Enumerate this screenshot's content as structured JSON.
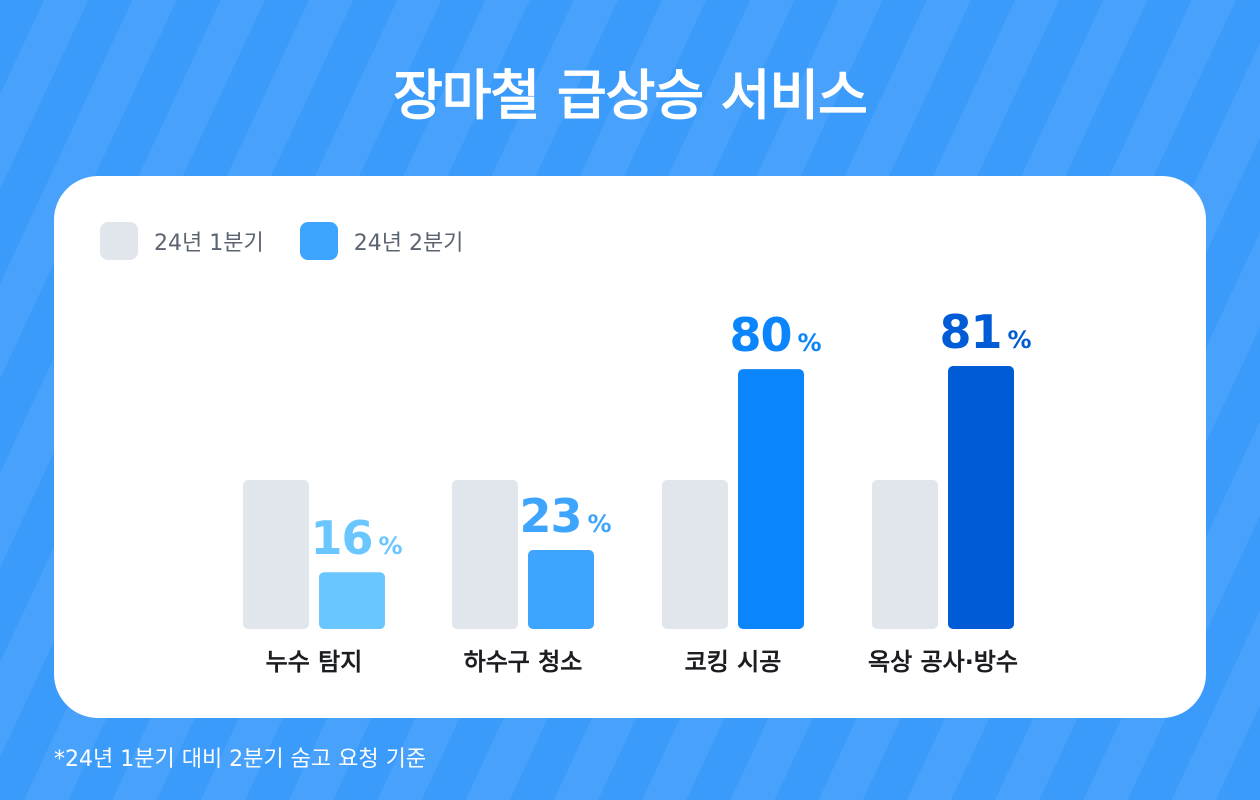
{
  "header": {
    "title": "장마철 급상승 서비스"
  },
  "footnote": "*24년 1분기 대비 2분기 숨고 요청 기준",
  "colors": {
    "q1": "#e1e5ec",
    "q2_by_category": [
      "#6ac6ff",
      "#3ea5fe",
      "#0b85fb",
      "#005bd6"
    ],
    "q2_legend": "#3ea5fe"
  },
  "chart_data": {
    "type": "bar",
    "categories": [
      "누수 탐지",
      "하수구 청소",
      "코킹 시공",
      "옥상 공사·방수"
    ],
    "series": [
      {
        "name": "24년 1분기",
        "values": [
          null,
          null,
          null,
          null
        ]
      },
      {
        "name": "24년 2분기",
        "values": [
          16,
          23,
          80,
          81
        ]
      }
    ],
    "unit": "%",
    "value_labels": [
      "16",
      "23",
      "80",
      "81"
    ],
    "legend": {
      "position": "top-left",
      "entries": [
        "24년 1분기",
        "24년 2분기"
      ]
    },
    "grid": false,
    "title": "장마철 급상승 서비스"
  }
}
